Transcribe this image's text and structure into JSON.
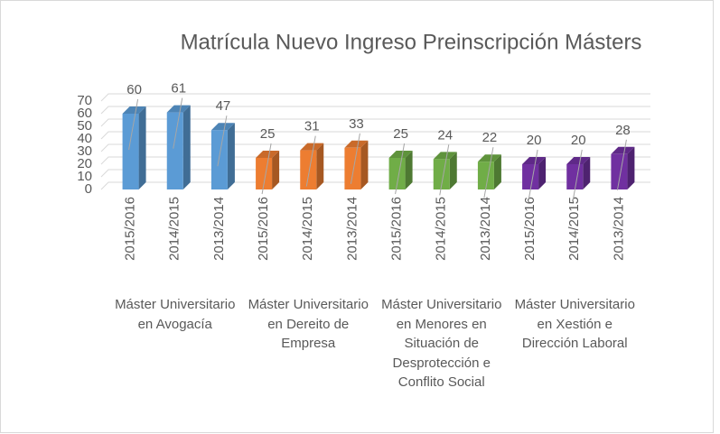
{
  "chart_data": {
    "type": "bar",
    "title": "Matrícula Nuevo Ingreso Preinscripción Másters",
    "groups": [
      {
        "name": "Máster Universitario en Avogacía",
        "color": "#5b9bd5",
        "categories": [
          "2015/2016",
          "2014/2015",
          "2013/2014"
        ],
        "values": [
          60,
          61,
          47
        ]
      },
      {
        "name": "Máster Universitario en Dereito de Empresa",
        "color": "#ed7d31",
        "categories": [
          "2015/2016",
          "2014/2015",
          "2013/2014"
        ],
        "values": [
          25,
          31,
          33
        ]
      },
      {
        "name": "Máster Universitario en Menores en Situación de Desprotección e Conflito Social",
        "color": "#70ad47",
        "categories": [
          "2015/2016",
          "2014/2015",
          "2013/2014"
        ],
        "values": [
          25,
          24,
          22
        ]
      },
      {
        "name": "Máster Universitario en Xestión e Dirección Laboral",
        "color": "#7030a0",
        "categories": [
          "2015/2016",
          "2014/2015",
          "2013/2014"
        ],
        "values": [
          20,
          20,
          28
        ]
      }
    ],
    "ylim": [
      0,
      70
    ],
    "yticks": [
      0,
      10,
      20,
      30,
      40,
      50,
      60,
      70
    ],
    "grid": true
  }
}
